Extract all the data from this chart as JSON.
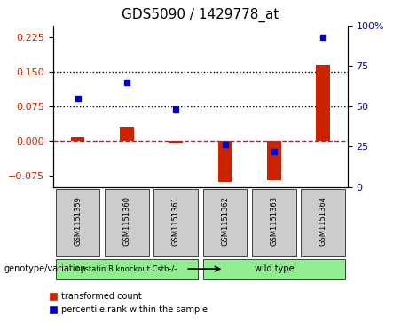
{
  "title": "GDS5090 / 1429778_at",
  "samples": [
    "GSM1151359",
    "GSM1151360",
    "GSM1151361",
    "GSM1151362",
    "GSM1151363",
    "GSM1151364"
  ],
  "red_values": [
    0.008,
    0.03,
    -0.005,
    -0.09,
    -0.085,
    0.165
  ],
  "blue_values_pct": [
    55,
    65,
    48,
    26,
    22,
    93
  ],
  "groups": [
    {
      "label": "cystatin B knockout Cstb-/-",
      "samples": [
        0,
        1,
        2
      ],
      "color": "#90EE90"
    },
    {
      "label": "wild type",
      "samples": [
        3,
        4,
        5
      ],
      "color": "#90EE90"
    }
  ],
  "group_labels": [
    "cystatin B knockout Cstb-/-",
    "wild type"
  ],
  "group_colors": [
    "#90EE90",
    "#90EE90"
  ],
  "ylim_left": [
    -0.1,
    0.25
  ],
  "ylim_right": [
    0,
    100
  ],
  "yticks_left": [
    -0.075,
    0,
    0.075,
    0.15,
    0.225
  ],
  "yticks_right": [
    0,
    25,
    50,
    75,
    100
  ],
  "hlines": [
    0.075,
    0.15
  ],
  "red_color": "#CC2200",
  "blue_color": "#0000CC",
  "legend_red": "transformed count",
  "legend_blue": "percentile rank within the sample",
  "genotype_label": "genotype/variation",
  "bar_width": 0.35
}
